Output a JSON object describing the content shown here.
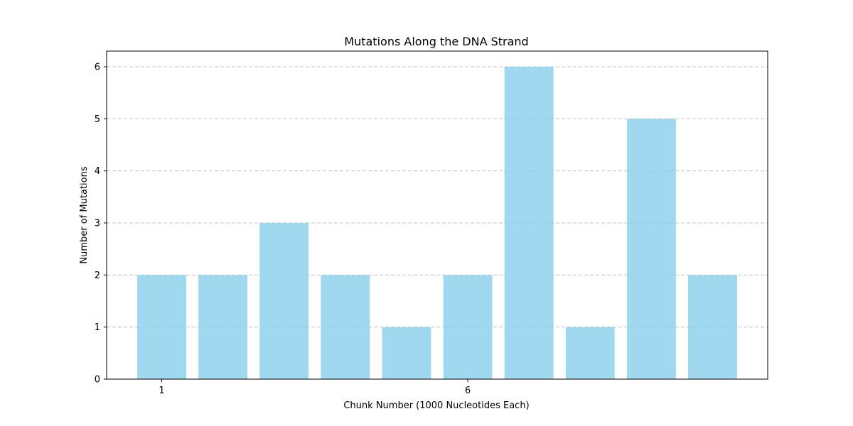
{
  "chart_data": {
    "type": "bar",
    "title": "Mutations Along the DNA Strand",
    "xlabel": "Chunk Number (1000 Nucleotides Each)",
    "ylabel": "Number of Mutations",
    "x": [
      1,
      2,
      3,
      4,
      5,
      6,
      7,
      8,
      9,
      10
    ],
    "values": [
      2,
      2,
      3,
      2,
      1,
      2,
      6,
      1,
      5,
      2
    ],
    "xticks": [
      1,
      6
    ],
    "yticks": [
      0,
      1,
      2,
      3,
      4,
      5,
      6
    ],
    "ylim": [
      0,
      6.3
    ],
    "xlim": [
      0.1,
      10.9
    ],
    "bar_color": "#87ceeb",
    "bar_opacity": 0.8,
    "grid": "y-dashed"
  }
}
